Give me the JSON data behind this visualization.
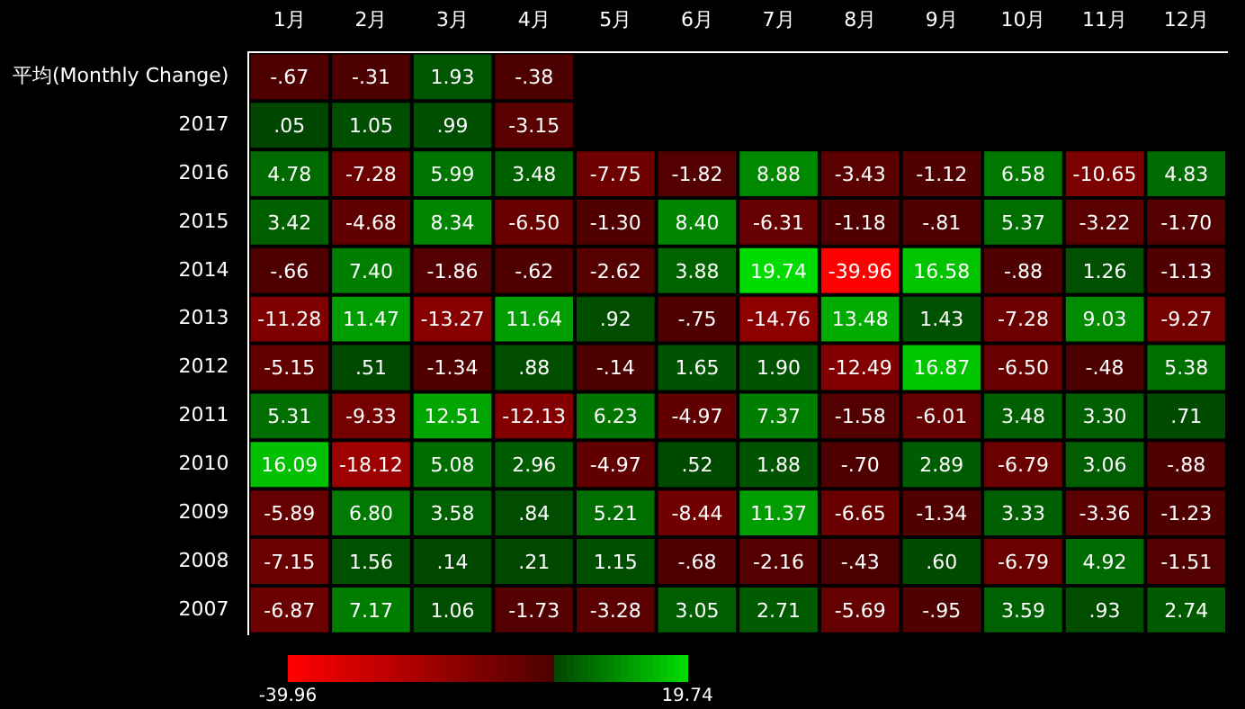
{
  "chart_data": {
    "type": "heatmap",
    "categories": [
      "1月",
      "2月",
      "3月",
      "4月",
      "5月",
      "6月",
      "7月",
      "8月",
      "9月",
      "10月",
      "11月",
      "12月"
    ],
    "y_categories": [
      "平均(Monthly Change)",
      "2017",
      "2016",
      "2015",
      "2014",
      "2013",
      "2012",
      "2011",
      "2010",
      "2009",
      "2008",
      "2007"
    ],
    "cells": [
      [
        -0.67,
        -0.31,
        1.93,
        -0.38,
        null,
        null,
        null,
        null,
        null,
        null,
        null,
        null
      ],
      [
        0.05,
        1.05,
        0.99,
        -3.15,
        null,
        null,
        null,
        null,
        null,
        null,
        null,
        null
      ],
      [
        4.78,
        -7.28,
        5.99,
        3.48,
        -7.75,
        -1.82,
        8.88,
        -3.43,
        -1.12,
        6.58,
        -10.65,
        4.83
      ],
      [
        3.42,
        -4.68,
        8.34,
        -6.5,
        -1.3,
        8.4,
        -6.31,
        -1.18,
        -0.81,
        5.37,
        -3.22,
        -1.7
      ],
      [
        -0.66,
        7.4,
        -1.86,
        -0.62,
        -2.62,
        3.88,
        19.74,
        -39.96,
        16.58,
        -0.88,
        1.26,
        -1.13
      ],
      [
        -11.28,
        11.47,
        -13.27,
        11.64,
        0.92,
        -0.75,
        -14.76,
        13.48,
        1.43,
        -7.28,
        9.03,
        -9.27
      ],
      [
        -5.15,
        0.51,
        -1.34,
        0.88,
        -0.14,
        1.65,
        1.9,
        -12.49,
        16.87,
        -6.5,
        -0.48,
        5.38
      ],
      [
        5.31,
        -9.33,
        12.51,
        -12.13,
        6.23,
        -4.97,
        7.37,
        -1.58,
        -6.01,
        3.48,
        3.3,
        0.71
      ],
      [
        16.09,
        -18.12,
        5.08,
        2.96,
        -4.97,
        0.52,
        1.88,
        -0.7,
        2.89,
        -6.79,
        3.06,
        -0.88
      ],
      [
        -5.89,
        6.8,
        3.58,
        0.84,
        5.21,
        -8.44,
        11.37,
        -6.65,
        -1.34,
        3.33,
        -3.36,
        -1.23
      ],
      [
        -7.15,
        1.56,
        0.14,
        0.21,
        1.15,
        -0.68,
        -2.16,
        -0.43,
        0.6,
        -6.79,
        4.92,
        -1.51
      ],
      [
        -6.87,
        7.17,
        1.06,
        -1.73,
        -3.28,
        3.05,
        2.71,
        -5.69,
        -0.95,
        3.59,
        0.93,
        2.74
      ]
    ],
    "cell_labels": [
      [
        "-.67",
        "-.31",
        "1.93",
        "-.38",
        null,
        null,
        null,
        null,
        null,
        null,
        null,
        null
      ],
      [
        ".05",
        "1.05",
        ".99",
        "-3.15",
        null,
        null,
        null,
        null,
        null,
        null,
        null,
        null
      ],
      [
        "4.78",
        "-7.28",
        "5.99",
        "3.48",
        "-7.75",
        "-1.82",
        "8.88",
        "-3.43",
        "-1.12",
        "6.58",
        "-10.65",
        "4.83"
      ],
      [
        "3.42",
        "-4.68",
        "8.34",
        "-6.50",
        "-1.30",
        "8.40",
        "-6.31",
        "-1.18",
        "-.81",
        "5.37",
        "-3.22",
        "-1.70"
      ],
      [
        "-.66",
        "7.40",
        "-1.86",
        "-.62",
        "-2.62",
        "3.88",
        "19.74",
        "-39.96",
        "16.58",
        "-.88",
        "1.26",
        "-1.13"
      ],
      [
        "-11.28",
        "11.47",
        "-13.27",
        "11.64",
        ".92",
        "-.75",
        "-14.76",
        "13.48",
        "1.43",
        "-7.28",
        "9.03",
        "-9.27"
      ],
      [
        "-5.15",
        ".51",
        "-1.34",
        ".88",
        "-.14",
        "1.65",
        "1.90",
        "-12.49",
        "16.87",
        "-6.50",
        "-.48",
        "5.38"
      ],
      [
        "5.31",
        "-9.33",
        "12.51",
        "-12.13",
        "6.23",
        "-4.97",
        "7.37",
        "-1.58",
        "-6.01",
        "3.48",
        "3.30",
        ".71"
      ],
      [
        "16.09",
        "-18.12",
        "5.08",
        "2.96",
        "-4.97",
        ".52",
        "1.88",
        "-.70",
        "2.89",
        "-6.79",
        "3.06",
        "-.88"
      ],
      [
        "-5.89",
        "6.80",
        "3.58",
        ".84",
        "5.21",
        "-8.44",
        "11.37",
        "-6.65",
        "-1.34",
        "3.33",
        "-3.36",
        "-1.23"
      ],
      [
        "-7.15",
        "1.56",
        ".14",
        ".21",
        "1.15",
        "-.68",
        "-2.16",
        "-.43",
        ".60",
        "-6.79",
        "4.92",
        "-1.51"
      ],
      [
        "-6.87",
        "7.17",
        "1.06",
        "-1.73",
        "-3.28",
        "3.05",
        "2.71",
        "-5.69",
        "-.95",
        "3.59",
        ".93",
        "2.74"
      ]
    ],
    "clim": [
      -39.96,
      19.74
    ],
    "cticks": [
      -39.96,
      19.74
    ]
  }
}
